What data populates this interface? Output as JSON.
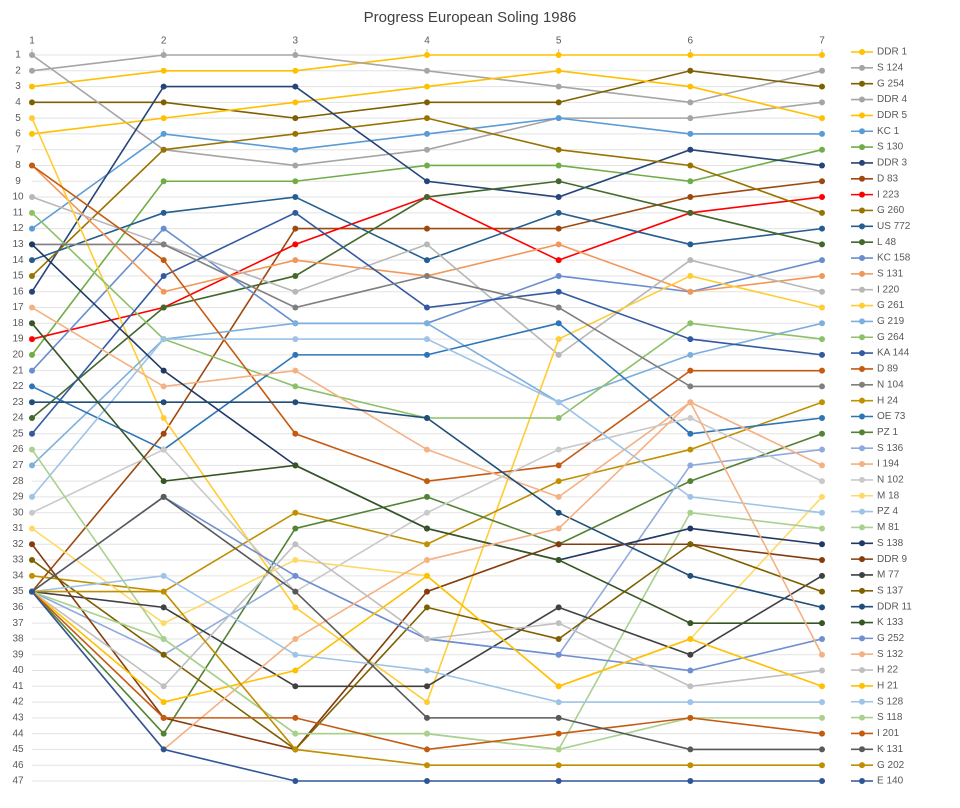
{
  "chart_data": {
    "type": "line",
    "title": "Progress European Soling 1986",
    "x": [
      1,
      2,
      3,
      4,
      5,
      6,
      7
    ],
    "xlim": [
      1,
      7
    ],
    "xticks": [
      1,
      2,
      3,
      4,
      5,
      6,
      7
    ],
    "ylim": [
      1,
      47
    ],
    "y_inverted": true,
    "yticks": [
      1,
      2,
      3,
      4,
      5,
      6,
      7,
      8,
      9,
      10,
      11,
      12,
      13,
      14,
      15,
      16,
      17,
      18,
      19,
      20,
      21,
      22,
      23,
      24,
      25,
      26,
      27,
      28,
      29,
      30,
      31,
      32,
      33,
      34,
      35,
      36,
      37,
      38,
      39,
      40,
      41,
      42,
      43,
      44,
      45,
      46,
      47
    ],
    "grid": true,
    "legend": "right",
    "series": [
      {
        "name": "DDR 1",
        "color": "#ffc000",
        "values": [
          3,
          2,
          2,
          1,
          1,
          1,
          1
        ]
      },
      {
        "name": "S 124",
        "color": "#a5a5a5",
        "values": [
          2,
          1,
          1,
          2,
          3,
          4,
          2
        ]
      },
      {
        "name": "G 254",
        "color": "#7f6000",
        "values": [
          4,
          4,
          5,
          4,
          4,
          2,
          3
        ]
      },
      {
        "name": "DDR 4",
        "color": "#a5a5a5",
        "values": [
          1,
          7,
          8,
          7,
          5,
          5,
          4
        ]
      },
      {
        "name": "DDR 5",
        "color": "#ffc000",
        "values": [
          6,
          5,
          4,
          3,
          2,
          3,
          5
        ]
      },
      {
        "name": "KC 1",
        "color": "#5b9bd5",
        "values": [
          12,
          6,
          7,
          6,
          5,
          6,
          6
        ]
      },
      {
        "name": "S 130",
        "color": "#70ad47",
        "values": [
          20,
          9,
          9,
          8,
          8,
          9,
          7
        ]
      },
      {
        "name": "DDR 3",
        "color": "#264478",
        "values": [
          16,
          3,
          3,
          9,
          10,
          7,
          8
        ]
      },
      {
        "name": "D 83",
        "color": "#9e480e",
        "values": [
          35,
          25,
          12,
          12,
          12,
          10,
          9
        ]
      },
      {
        "name": "I 223",
        "color": "#ff0000",
        "values": [
          19,
          17,
          13,
          10,
          14,
          11,
          10
        ]
      },
      {
        "name": "G 260",
        "color": "#997300",
        "values": [
          15,
          7,
          6,
          5,
          7,
          8,
          11
        ]
      },
      {
        "name": "US 772",
        "color": "#255e91",
        "values": [
          14,
          11,
          10,
          14,
          11,
          13,
          12
        ]
      },
      {
        "name": "L 48",
        "color": "#43682b",
        "values": [
          24,
          17,
          15,
          10,
          9,
          11,
          13
        ]
      },
      {
        "name": "KC 158",
        "color": "#698ed0",
        "values": [
          21,
          12,
          18,
          18,
          15,
          16,
          14
        ]
      },
      {
        "name": "S 131",
        "color": "#f1975a",
        "values": [
          8,
          16,
          14,
          15,
          13,
          16,
          15
        ]
      },
      {
        "name": "I 220",
        "color": "#b7b7b7",
        "values": [
          10,
          13,
          16,
          13,
          20,
          14,
          16
        ]
      },
      {
        "name": "G 261",
        "color": "#ffcd33",
        "values": [
          5,
          24,
          36,
          42,
          19,
          15,
          17
        ]
      },
      {
        "name": "G 219",
        "color": "#7cafdd",
        "values": [
          27,
          19,
          18,
          18,
          23,
          20,
          18
        ]
      },
      {
        "name": "G 264",
        "color": "#8cc168",
        "values": [
          11,
          19,
          22,
          24,
          24,
          18,
          19
        ]
      },
      {
        "name": "KA 144",
        "color": "#335aa1",
        "values": [
          25,
          15,
          11,
          17,
          16,
          19,
          20
        ]
      },
      {
        "name": "D 89",
        "color": "#c55a11",
        "values": [
          8,
          14,
          25,
          28,
          27,
          21,
          21
        ]
      },
      {
        "name": "N 104",
        "color": "#7f7f7f",
        "values": [
          13,
          13,
          17,
          15,
          17,
          22,
          22
        ]
      },
      {
        "name": "H 24",
        "color": "#bf9000",
        "values": [
          34,
          35,
          30,
          32,
          28,
          26,
          23
        ]
      },
      {
        "name": "OE 73",
        "color": "#2e75b6",
        "values": [
          22,
          26,
          20,
          20,
          18,
          25,
          24
        ]
      },
      {
        "name": "PZ 1",
        "color": "#548235",
        "values": [
          35,
          44,
          31,
          29,
          32,
          28,
          25
        ]
      },
      {
        "name": "S 136",
        "color": "#8faadc",
        "values": [
          35,
          39,
          34,
          38,
          39,
          27,
          26
        ]
      },
      {
        "name": "I 194",
        "color": "#f4b183",
        "values": [
          17,
          22,
          21,
          26,
          29,
          23,
          27
        ]
      },
      {
        "name": "N 102",
        "color": "#c9c9c9",
        "values": [
          30,
          26,
          35,
          30,
          26,
          24,
          28
        ]
      },
      {
        "name": "M 18",
        "color": "#ffd966",
        "values": [
          31,
          37,
          33,
          34,
          41,
          38,
          29
        ]
      },
      {
        "name": "PZ 4",
        "color": "#9dc3e6",
        "values": [
          29,
          19,
          19,
          19,
          23,
          29,
          30
        ]
      },
      {
        "name": "M 81",
        "color": "#a9d18e",
        "values": [
          26,
          38,
          44,
          44,
          45,
          30,
          31
        ]
      },
      {
        "name": "S 138",
        "color": "#203864",
        "values": [
          13,
          21,
          27,
          31,
          33,
          31,
          32
        ]
      },
      {
        "name": "DDR 9",
        "color": "#843c0c",
        "values": [
          32,
          43,
          45,
          35,
          32,
          32,
          33
        ]
      },
      {
        "name": "M 77",
        "color": "#404040",
        "values": [
          35,
          36,
          41,
          41,
          36,
          39,
          34
        ]
      },
      {
        "name": "S 137",
        "color": "#7f6000",
        "values": [
          33,
          39,
          45,
          36,
          38,
          32,
          35
        ]
      },
      {
        "name": "DDR 11",
        "color": "#1f4e79",
        "values": [
          23,
          23,
          23,
          24,
          30,
          34,
          36
        ]
      },
      {
        "name": "K 133",
        "color": "#375623",
        "values": [
          18,
          28,
          27,
          31,
          33,
          37,
          37
        ]
      },
      {
        "name": "G 252",
        "color": "#6f8fd0",
        "values": [
          35,
          29,
          34,
          38,
          39,
          40,
          38
        ]
      },
      {
        "name": "S 132",
        "color": "#f4b183",
        "values": [
          35,
          45,
          38,
          33,
          31,
          23,
          39
        ]
      },
      {
        "name": "H 22",
        "color": "#bfbfbf",
        "values": [
          35,
          41,
          32,
          38,
          37,
          41,
          40
        ]
      },
      {
        "name": "H 21",
        "color": "#ffc000",
        "values": [
          35,
          42,
          40,
          34,
          41,
          38,
          41
        ]
      },
      {
        "name": "S 128",
        "color": "#9dc3e6",
        "values": [
          35,
          34,
          39,
          40,
          42,
          42,
          42
        ]
      },
      {
        "name": "S 118",
        "color": "#a9d18e",
        "values": [
          35,
          38,
          44,
          44,
          45,
          43,
          43
        ]
      },
      {
        "name": "I 201",
        "color": "#c55a11",
        "values": [
          35,
          43,
          43,
          45,
          44,
          43,
          44
        ]
      },
      {
        "name": "K 131",
        "color": "#595959",
        "values": [
          35,
          29,
          35,
          43,
          43,
          45,
          45
        ]
      },
      {
        "name": "G 202",
        "color": "#bf8f00",
        "values": [
          35,
          35,
          45,
          46,
          46,
          46,
          46
        ]
      },
      {
        "name": "E 140",
        "color": "#2f5597",
        "values": [
          35,
          45,
          47,
          47,
          47,
          47,
          47
        ]
      }
    ]
  }
}
